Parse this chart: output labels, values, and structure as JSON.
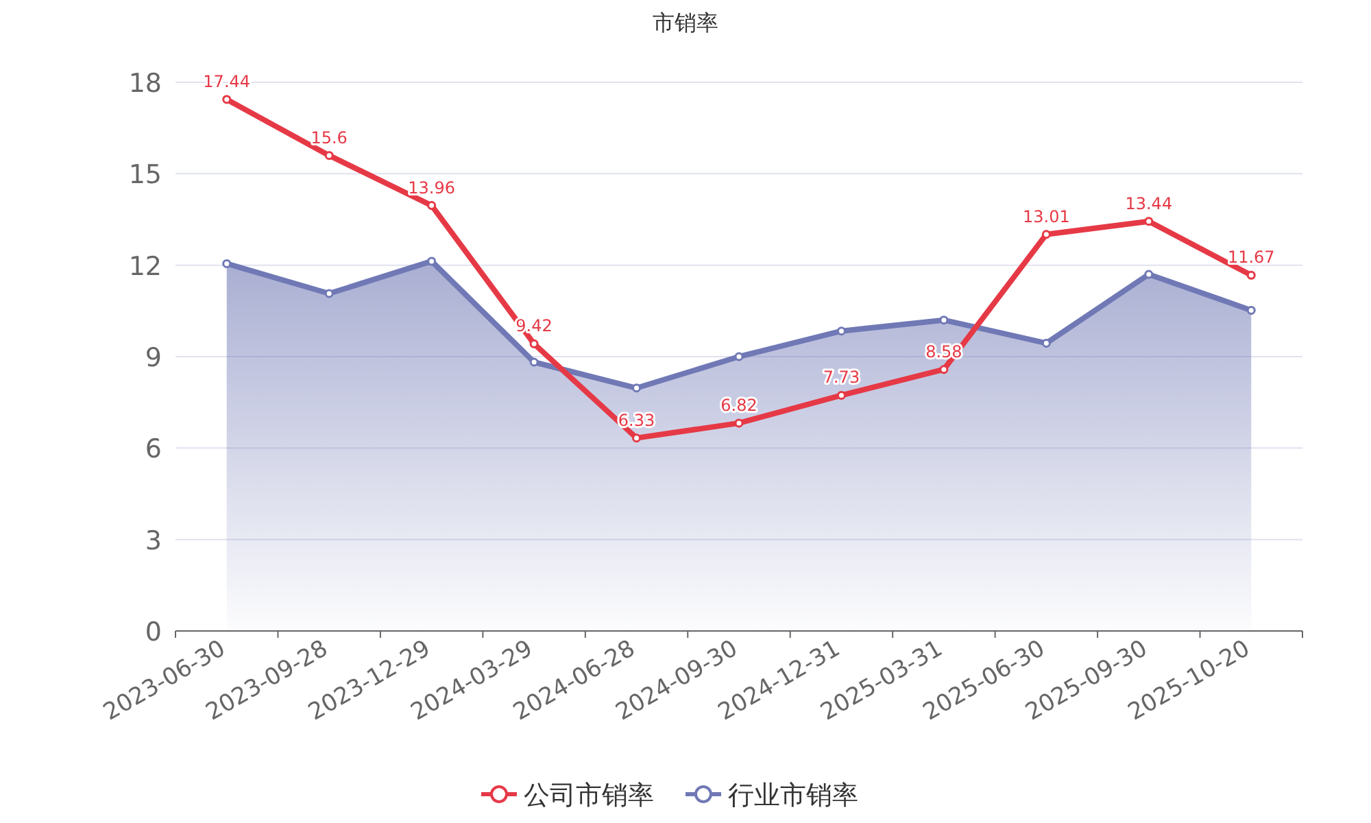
{
  "chart_data": {
    "type": "line",
    "title": "市销率",
    "categories": [
      "2023-06-30",
      "2023-09-28",
      "2023-12-29",
      "2024-03-29",
      "2024-06-28",
      "2024-09-30",
      "2024-12-31",
      "2025-03-31",
      "2025-06-30",
      "2025-09-30",
      "2025-10-20"
    ],
    "series": [
      {
        "name": "公司市销率",
        "color": "#e63946",
        "values": [
          17.44,
          15.6,
          13.96,
          9.42,
          6.33,
          6.82,
          7.73,
          8.58,
          13.01,
          13.44,
          11.67
        ],
        "value_labels": [
          "17.44",
          "15.6",
          "13.96",
          "9.42",
          "6.33",
          "6.82",
          "7.73",
          "8.58",
          "13.01",
          "13.44",
          "11.67"
        ]
      },
      {
        "name": "行业市销率",
        "type": "area",
        "color": "#7079b5",
        "values": [
          12.05,
          11.07,
          12.13,
          8.82,
          7.97,
          9.0,
          9.84,
          10.2,
          9.44,
          11.7,
          10.52
        ]
      }
    ],
    "ylim": [
      0,
      18
    ],
    "yticks": [
      0,
      3,
      6,
      9,
      12,
      15,
      18
    ],
    "grid": "y",
    "legend": "bottom",
    "marker": "circle"
  }
}
